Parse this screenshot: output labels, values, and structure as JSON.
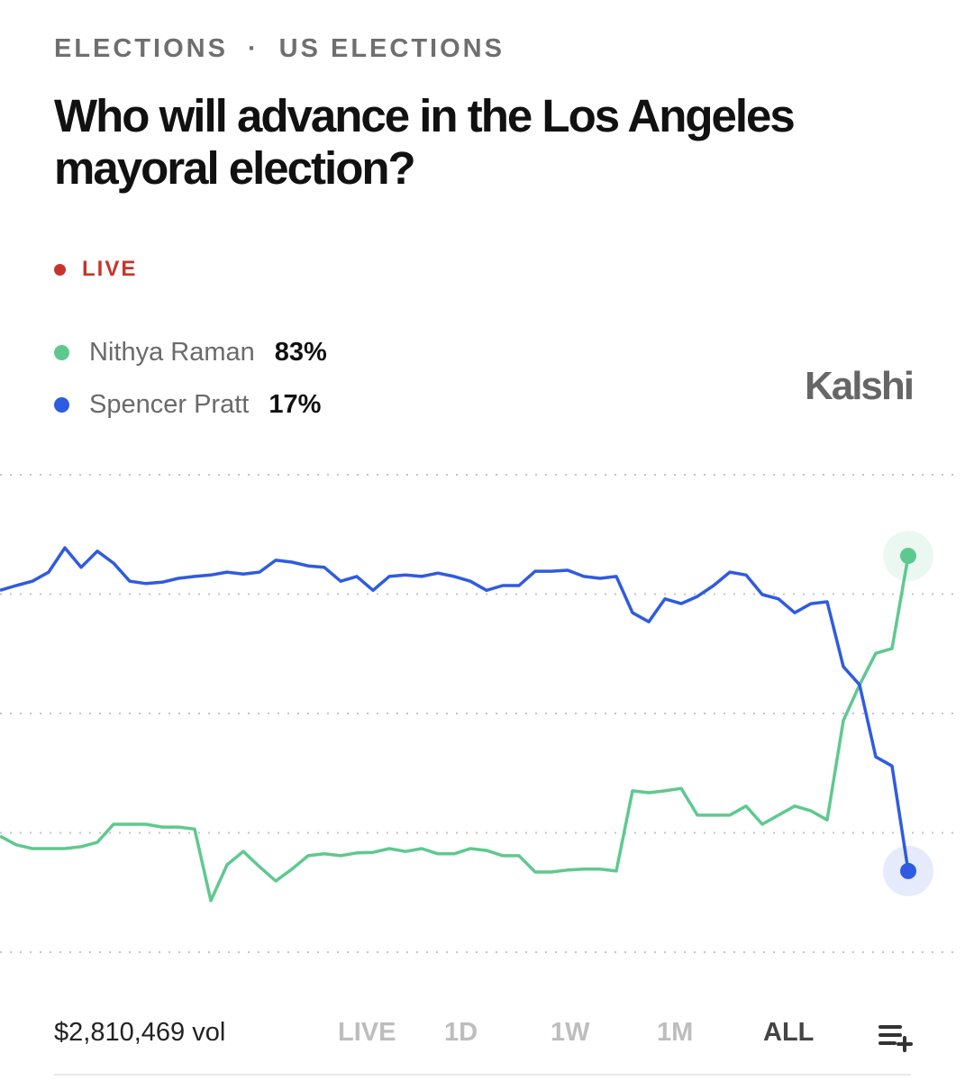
{
  "header": {
    "breadcrumb": [
      "ELECTIONS",
      "·",
      "US ELECTIONS"
    ],
    "title": "Who will advance in the Los Angeles mayoral election?",
    "status": "LIVE"
  },
  "brand": "Kalshi",
  "chart_data": {
    "type": "line",
    "ylim": [
      0,
      100
    ],
    "yticks": [
      0,
      25,
      50,
      75,
      100
    ],
    "grid": true,
    "series": [
      {
        "name": "Nithya Raman",
        "color": "#5ec98f",
        "current": {
          "value": 83,
          "label": "83%"
        },
        "values": [
          24.3,
          22.5,
          21.7,
          21.7,
          21.7,
          22.1,
          23,
          26.8,
          26.8,
          26.8,
          26.2,
          26.2,
          25.8,
          10.8,
          18.3,
          21.1,
          17.9,
          14.9,
          17.4,
          20.2,
          20.6,
          20.2,
          20.8,
          20.9,
          21.7,
          21.1,
          21.7,
          20.6,
          20.6,
          21.7,
          21.3,
          20.2,
          20.2,
          16.8,
          16.8,
          17.2,
          17.4,
          17.4,
          17,
          33.8,
          33.4,
          33.8,
          34.3,
          28.7,
          28.7,
          28.7,
          30.6,
          26.8,
          28.7,
          30.6,
          29.6,
          27.7,
          48.5,
          56,
          62.6,
          63.6,
          83
        ]
      },
      {
        "name": "Spencer Pratt",
        "color": "#2f5be0",
        "current": {
          "value": 17,
          "label": "17%"
        },
        "values": [
          75.8,
          76.8,
          77.7,
          79.6,
          84.7,
          80.6,
          84,
          81.5,
          77.7,
          77.2,
          77.5,
          78.3,
          78.7,
          79,
          79.6,
          79.2,
          79.6,
          82.1,
          81.7,
          80.9,
          80.6,
          77.7,
          78.7,
          75.8,
          78.7,
          79,
          78.7,
          79.4,
          78.7,
          77.7,
          75.8,
          76.8,
          76.8,
          79.8,
          79.8,
          80,
          78.7,
          78.3,
          78.7,
          71.1,
          69.2,
          74,
          73,
          74.5,
          76.8,
          79.6,
          79,
          74.9,
          74,
          71.1,
          73,
          73.4,
          59.8,
          56,
          40.9,
          39,
          17
        ]
      }
    ]
  },
  "footer": {
    "volume": "$2,810,469 vol",
    "ranges": [
      "LIVE",
      "1D",
      "1W",
      "1M",
      "ALL"
    ]
  }
}
